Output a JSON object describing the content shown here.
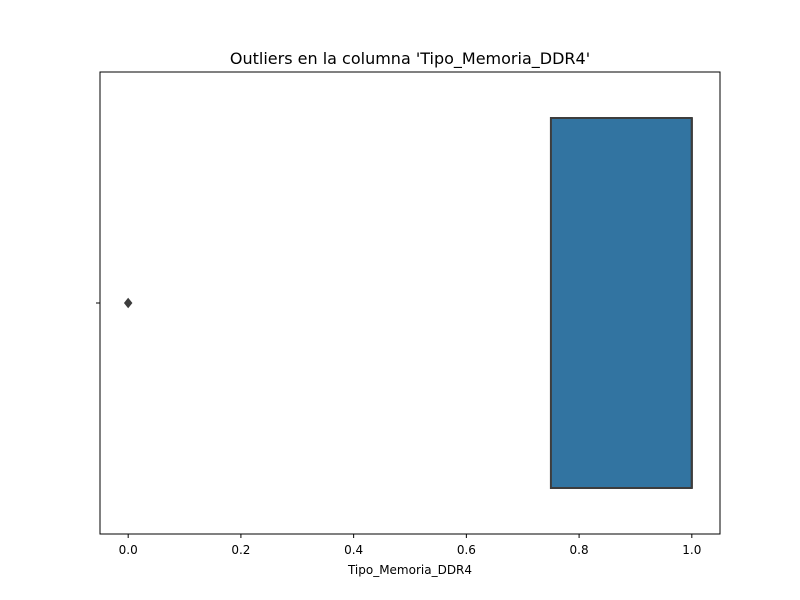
{
  "chart_data": {
    "type": "box",
    "title": "Outliers en la columna 'Tipo_Memoria_DDR4'",
    "xlabel": "Tipo_Memoria_DDR4",
    "ylabel": "",
    "orientation": "horizontal",
    "xlim": [
      -0.05,
      1.05
    ],
    "xticks": [
      0.0,
      0.2,
      0.4,
      0.6,
      0.8,
      1.0
    ],
    "xtick_labels": [
      "0.0",
      "0.2",
      "0.4",
      "0.6",
      "0.8",
      "1.0"
    ],
    "grid": false,
    "box": {
      "q1": 0.75,
      "median": 1.0,
      "q3": 1.0,
      "whisker_low": 0.75,
      "whisker_high": 1.0,
      "fill_color": "#3274a1",
      "edge_color": "#3d3d3d"
    },
    "outliers": [
      0.0
    ],
    "outlier_color": "#3d3d3d"
  }
}
